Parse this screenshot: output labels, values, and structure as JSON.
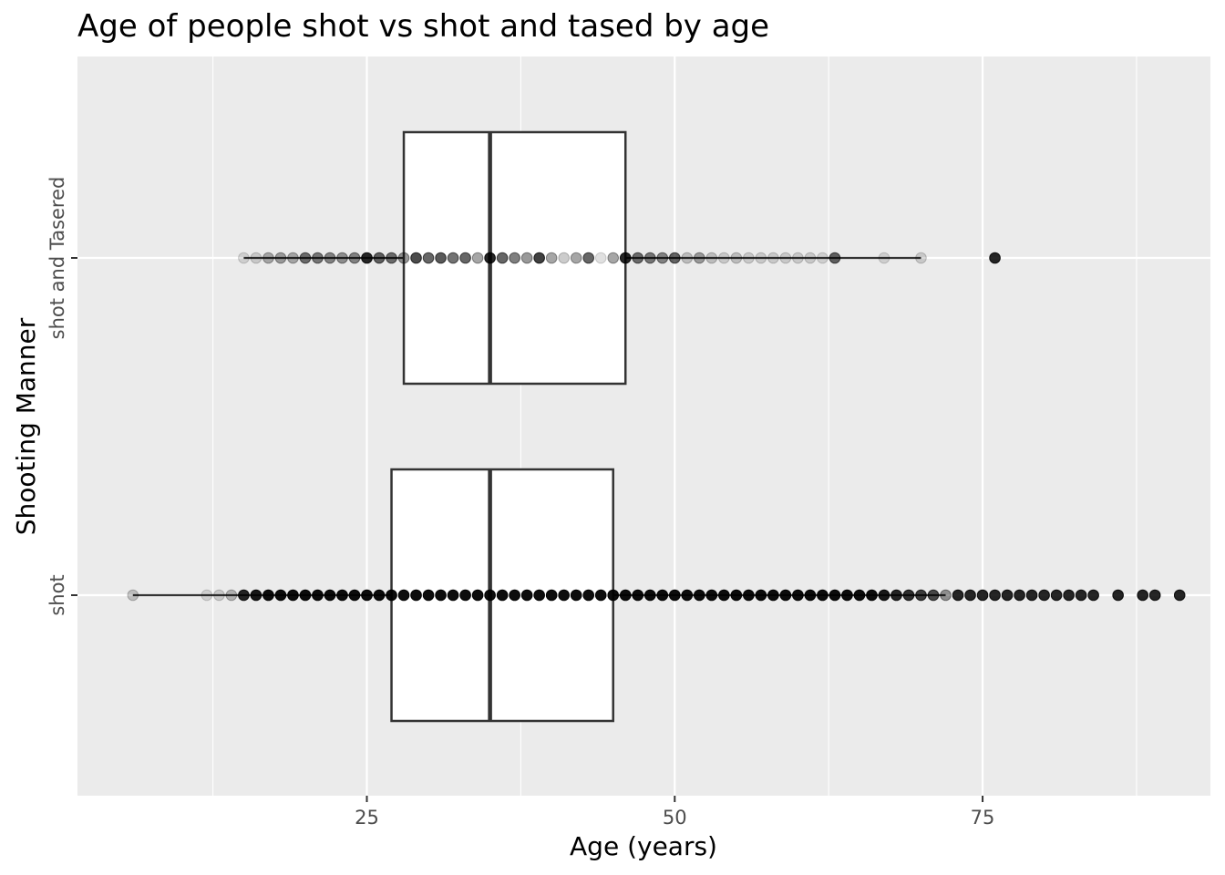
{
  "chart_data": {
    "type": "boxplot",
    "title": "Age of people shot vs shot and tased by age",
    "xlabel": "Age (years)",
    "ylabel": "Shooting Manner",
    "xlim": [
      1.5,
      93.5
    ],
    "xticks": [
      25,
      50,
      75
    ],
    "xticks_minor": [
      12.5,
      37.5,
      62.5,
      87.5
    ],
    "categories": [
      "shot",
      "shot and Tasered"
    ],
    "grid": true,
    "legend": "none",
    "colors": {
      "panel": "#ebebeb",
      "grid": "#ffffff",
      "box_fill": "#ffffff",
      "box_line": "#333333",
      "point": "#000000"
    },
    "boxes": [
      {
        "category": "shot",
        "min": 6,
        "q1": 27,
        "median": 35,
        "q3": 45,
        "max": 72,
        "points": [
          {
            "x": 6,
            "a": 0.2
          },
          {
            "x": 12,
            "a": 0.12
          },
          {
            "x": 13,
            "a": 0.15
          },
          {
            "x": 14,
            "a": 0.25
          },
          {
            "x": 15,
            "a": 0.85
          },
          {
            "x": 16,
            "a": 0.9
          },
          {
            "x": 17,
            "a": 0.95
          },
          {
            "x": 18,
            "a": 0.95
          },
          {
            "x": 19,
            "a": 0.95
          },
          {
            "x": 20,
            "a": 0.95
          },
          {
            "x": 21,
            "a": 0.95
          },
          {
            "x": 22,
            "a": 0.95
          },
          {
            "x": 23,
            "a": 0.95
          },
          {
            "x": 24,
            "a": 0.95
          },
          {
            "x": 25,
            "a": 0.95
          },
          {
            "x": 26,
            "a": 0.95
          },
          {
            "x": 27,
            "a": 0.95
          },
          {
            "x": 28,
            "a": 0.95
          },
          {
            "x": 29,
            "a": 0.95
          },
          {
            "x": 30,
            "a": 0.95
          },
          {
            "x": 31,
            "a": 0.95
          },
          {
            "x": 32,
            "a": 0.95
          },
          {
            "x": 33,
            "a": 0.95
          },
          {
            "x": 34,
            "a": 0.95
          },
          {
            "x": 35,
            "a": 0.95
          },
          {
            "x": 36,
            "a": 0.95
          },
          {
            "x": 37,
            "a": 0.95
          },
          {
            "x": 38,
            "a": 0.95
          },
          {
            "x": 39,
            "a": 0.95
          },
          {
            "x": 40,
            "a": 0.95
          },
          {
            "x": 41,
            "a": 0.95
          },
          {
            "x": 42,
            "a": 0.95
          },
          {
            "x": 43,
            "a": 0.95
          },
          {
            "x": 44,
            "a": 0.95
          },
          {
            "x": 45,
            "a": 0.95
          },
          {
            "x": 46,
            "a": 0.95
          },
          {
            "x": 47,
            "a": 0.95
          },
          {
            "x": 48,
            "a": 0.95
          },
          {
            "x": 49,
            "a": 0.95
          },
          {
            "x": 50,
            "a": 0.95
          },
          {
            "x": 51,
            "a": 0.95
          },
          {
            "x": 52,
            "a": 0.95
          },
          {
            "x": 53,
            "a": 0.95
          },
          {
            "x": 54,
            "a": 0.95
          },
          {
            "x": 55,
            "a": 0.95
          },
          {
            "x": 56,
            "a": 0.95
          },
          {
            "x": 57,
            "a": 0.95
          },
          {
            "x": 58,
            "a": 0.95
          },
          {
            "x": 59,
            "a": 0.95
          },
          {
            "x": 60,
            "a": 0.95
          },
          {
            "x": 61,
            "a": 0.95
          },
          {
            "x": 62,
            "a": 0.95
          },
          {
            "x": 63,
            "a": 0.95
          },
          {
            "x": 64,
            "a": 0.95
          },
          {
            "x": 65,
            "a": 0.95
          },
          {
            "x": 66,
            "a": 0.95
          },
          {
            "x": 67,
            "a": 0.9
          },
          {
            "x": 68,
            "a": 0.85
          },
          {
            "x": 69,
            "a": 0.8
          },
          {
            "x": 70,
            "a": 0.75
          },
          {
            "x": 71,
            "a": 0.7
          },
          {
            "x": 72,
            "a": 0.4
          },
          {
            "x": 73,
            "a": 0.85
          },
          {
            "x": 74,
            "a": 0.85
          },
          {
            "x": 75,
            "a": 0.85
          },
          {
            "x": 76,
            "a": 0.85
          },
          {
            "x": 77,
            "a": 0.85
          },
          {
            "x": 78,
            "a": 0.85
          },
          {
            "x": 79,
            "a": 0.85
          },
          {
            "x": 80,
            "a": 0.85
          },
          {
            "x": 81,
            "a": 0.85
          },
          {
            "x": 82,
            "a": 0.85
          },
          {
            "x": 83,
            "a": 0.85
          },
          {
            "x": 84,
            "a": 0.85
          },
          {
            "x": 86,
            "a": 0.85
          },
          {
            "x": 88,
            "a": 0.85
          },
          {
            "x": 89,
            "a": 0.85
          },
          {
            "x": 91,
            "a": 0.85
          }
        ]
      },
      {
        "category": "shot and Tasered",
        "min": 15,
        "q1": 28,
        "median": 35,
        "q3": 46,
        "max": 70,
        "points": [
          {
            "x": 15,
            "a": 0.12
          },
          {
            "x": 16,
            "a": 0.15
          },
          {
            "x": 17,
            "a": 0.3
          },
          {
            "x": 18,
            "a": 0.35
          },
          {
            "x": 19,
            "a": 0.3
          },
          {
            "x": 20,
            "a": 0.55
          },
          {
            "x": 21,
            "a": 0.5
          },
          {
            "x": 22,
            "a": 0.45
          },
          {
            "x": 23,
            "a": 0.4
          },
          {
            "x": 24,
            "a": 0.45
          },
          {
            "x": 25,
            "a": 0.85
          },
          {
            "x": 26,
            "a": 0.6
          },
          {
            "x": 27,
            "a": 0.55
          },
          {
            "x": 28,
            "a": 0.4
          },
          {
            "x": 29,
            "a": 0.7
          },
          {
            "x": 30,
            "a": 0.6
          },
          {
            "x": 31,
            "a": 0.65
          },
          {
            "x": 32,
            "a": 0.55
          },
          {
            "x": 33,
            "a": 0.6
          },
          {
            "x": 34,
            "a": 0.35
          },
          {
            "x": 35,
            "a": 0.85
          },
          {
            "x": 36,
            "a": 0.6
          },
          {
            "x": 37,
            "a": 0.5
          },
          {
            "x": 38,
            "a": 0.4
          },
          {
            "x": 39,
            "a": 0.75
          },
          {
            "x": 40,
            "a": 0.35
          },
          {
            "x": 41,
            "a": 0.2
          },
          {
            "x": 42,
            "a": 0.35
          },
          {
            "x": 43,
            "a": 0.6
          },
          {
            "x": 44,
            "a": 0.12
          },
          {
            "x": 45,
            "a": 0.35
          },
          {
            "x": 46,
            "a": 0.85
          },
          {
            "x": 47,
            "a": 0.55
          },
          {
            "x": 48,
            "a": 0.5
          },
          {
            "x": 49,
            "a": 0.45
          },
          {
            "x": 50,
            "a": 0.6
          },
          {
            "x": 51,
            "a": 0.2
          },
          {
            "x": 52,
            "a": 0.35
          },
          {
            "x": 53,
            "a": 0.2
          },
          {
            "x": 54,
            "a": 0.15
          },
          {
            "x": 55,
            "a": 0.2
          },
          {
            "x": 56,
            "a": 0.15
          },
          {
            "x": 57,
            "a": 0.15
          },
          {
            "x": 58,
            "a": 0.15
          },
          {
            "x": 59,
            "a": 0.15
          },
          {
            "x": 60,
            "a": 0.15
          },
          {
            "x": 61,
            "a": 0.15
          },
          {
            "x": 62,
            "a": 0.12
          },
          {
            "x": 63,
            "a": 0.6
          },
          {
            "x": 67,
            "a": 0.12
          },
          {
            "x": 70,
            "a": 0.15
          },
          {
            "x": 76,
            "a": 0.85
          }
        ]
      }
    ]
  }
}
